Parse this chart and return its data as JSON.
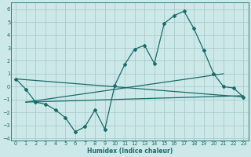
{
  "xlabel": "Humidex (Indice chaleur)",
  "background_color": "#cce8e8",
  "grid_color": "#aacccc",
  "line_color": "#1a6b6b",
  "xlim": [
    -0.5,
    23.5
  ],
  "ylim": [
    -4.2,
    6.5
  ],
  "xticks": [
    0,
    1,
    2,
    3,
    4,
    5,
    6,
    7,
    8,
    9,
    10,
    11,
    12,
    13,
    14,
    15,
    16,
    17,
    18,
    19,
    20,
    21,
    22,
    23
  ],
  "yticks": [
    -4,
    -3,
    -2,
    -1,
    0,
    1,
    2,
    3,
    4,
    5,
    6
  ],
  "curve_x": [
    0,
    1,
    2,
    3,
    4,
    5,
    6,
    7,
    8,
    9,
    10,
    11,
    12,
    13,
    14,
    15,
    16,
    17,
    18,
    19,
    20,
    21,
    22,
    23
  ],
  "curve_y": [
    0.6,
    -0.2,
    -1.2,
    -1.35,
    -1.8,
    -2.4,
    -3.5,
    -3.1,
    -1.8,
    -3.3,
    0.1,
    1.7,
    2.9,
    3.2,
    1.8,
    4.9,
    5.5,
    5.85,
    4.5,
    2.8,
    1.0,
    0.0,
    -0.1,
    -0.8
  ],
  "line1_x": [
    0,
    23
  ],
  "line1_y": [
    0.6,
    -0.8
  ],
  "line2_x": [
    1,
    23
  ],
  "line2_y": [
    -1.2,
    -0.7
  ],
  "line3_x": [
    1,
    21
  ],
  "line3_y": [
    -1.2,
    1.0
  ]
}
